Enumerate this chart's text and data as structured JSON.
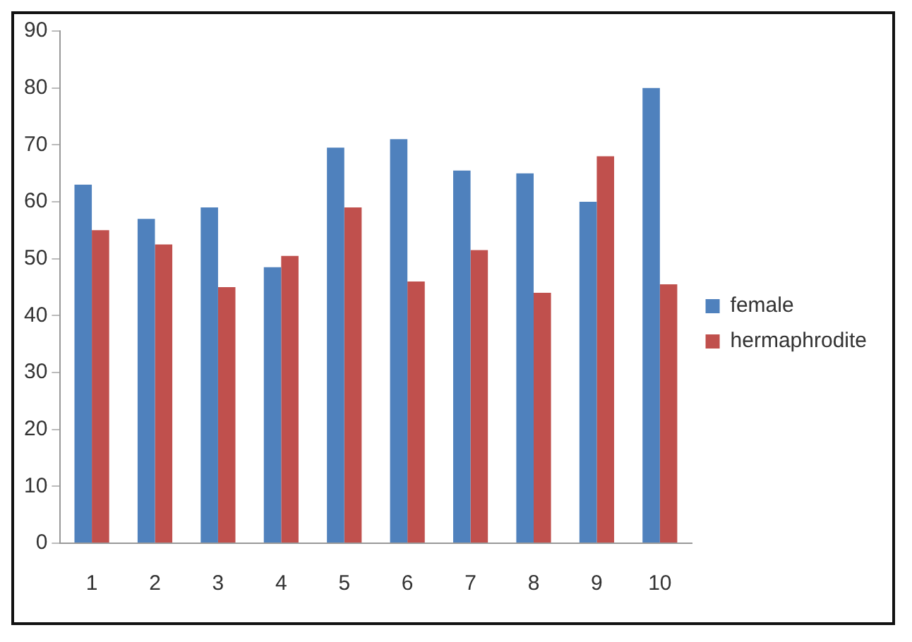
{
  "chart_data": {
    "type": "bar",
    "categories": [
      "1",
      "2",
      "3",
      "4",
      "5",
      "6",
      "7",
      "8",
      "9",
      "10"
    ],
    "series": [
      {
        "name": "female",
        "color": "#4f81bd",
        "values": [
          63,
          57,
          59,
          48.5,
          69.5,
          71,
          65.5,
          65,
          60,
          80
        ]
      },
      {
        "name": "hermaphrodite",
        "color": "#c0504d",
        "values": [
          55,
          52.5,
          45,
          50.5,
          59,
          46,
          51.5,
          44,
          68,
          45.5
        ]
      }
    ],
    "ylim": [
      0,
      90
    ],
    "yticks": [
      0,
      10,
      20,
      30,
      40,
      50,
      60,
      70,
      80,
      90
    ],
    "grid": false,
    "legend": "right"
  }
}
